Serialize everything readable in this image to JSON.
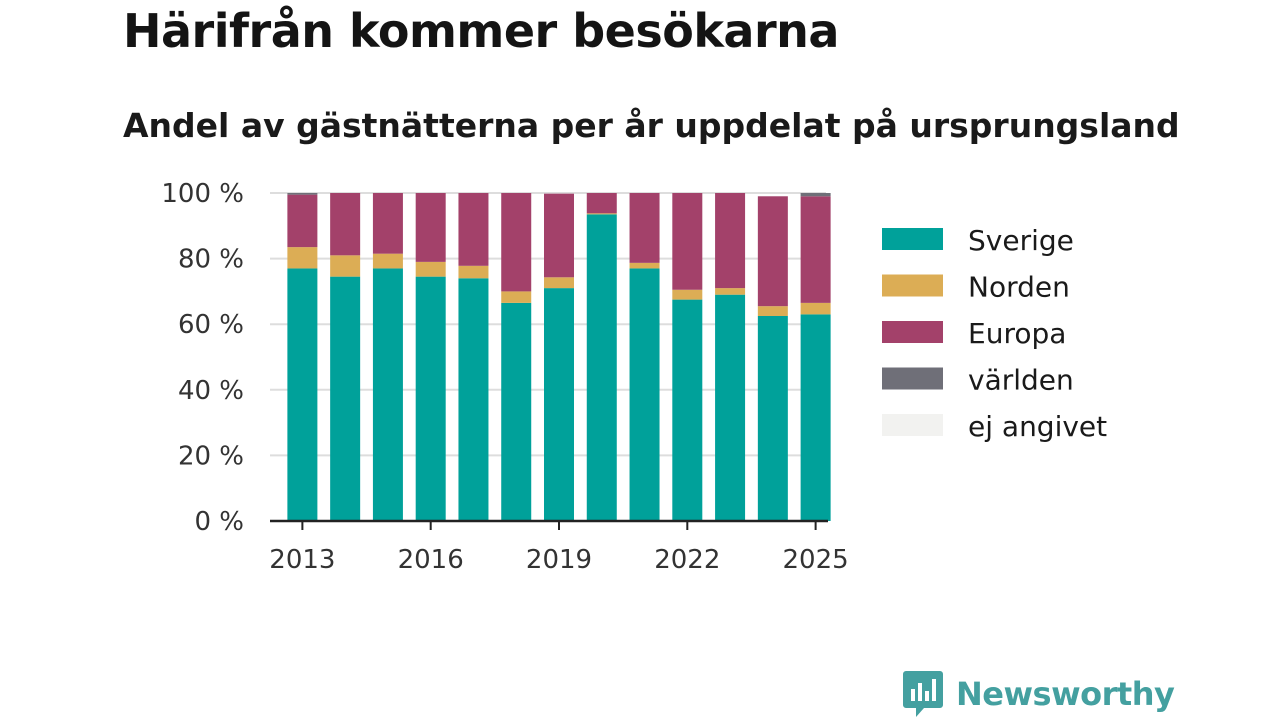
{
  "title": "Härifrån kommer besökarna",
  "subtitle": "Andel av gästnätterna per år uppdelat på ursprungsland",
  "brand": "Newsworthy",
  "chart_data": {
    "type": "bar",
    "stacked": true,
    "x": [
      2013,
      2014,
      2015,
      2016,
      2017,
      2018,
      2019,
      2020,
      2021,
      2022,
      2023,
      2024,
      2025
    ],
    "x_ticks": [
      "2013",
      "2016",
      "2019",
      "2022",
      "2025"
    ],
    "y_ticks": [
      "0 %",
      "20 %",
      "40 %",
      "60 %",
      "80 %",
      "100 %"
    ],
    "ylim": [
      0,
      100
    ],
    "grid": true,
    "legend_position": "right",
    "series": [
      {
        "name": "Sverige",
        "color": "#00a19a",
        "values": [
          77,
          74.5,
          77,
          74.5,
          74,
          66.5,
          71,
          93.5,
          77,
          67.5,
          69,
          62.5,
          63
        ]
      },
      {
        "name": "Norden",
        "color": "#dcad55",
        "values": [
          6.5,
          6.5,
          4.5,
          4.5,
          3.8,
          3.5,
          3.3,
          0.3,
          1.7,
          3,
          2,
          3,
          3.5
        ]
      },
      {
        "name": "Europa",
        "color": "#a3416a",
        "values": [
          16,
          19,
          18.5,
          21,
          22.2,
          30,
          25.5,
          6.2,
          21.3,
          29.5,
          29,
          33.5,
          32.5
        ]
      },
      {
        "name": "världen",
        "color": "#6f6f78",
        "values": [
          0.5,
          0,
          0,
          0,
          0,
          0,
          0,
          0,
          0,
          0,
          0,
          0,
          1
        ]
      },
      {
        "name": "ej angivet",
        "color": "#f2f2f0",
        "values": [
          0,
          0,
          0,
          0,
          0,
          0,
          0,
          0,
          0,
          0,
          0,
          0,
          0
        ]
      }
    ]
  }
}
